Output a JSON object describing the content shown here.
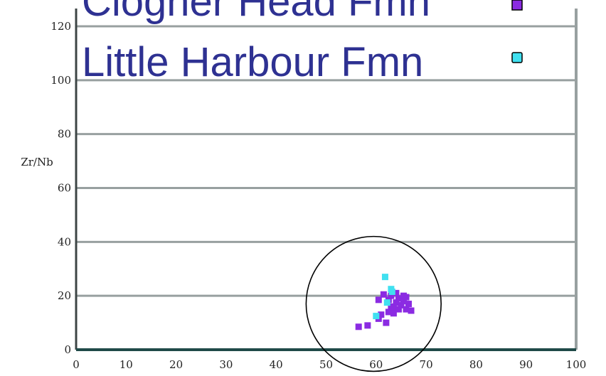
{
  "chart_data": {
    "type": "scatter",
    "ylabel": "Zr/Nb",
    "xlabel": "",
    "xlim": [
      0,
      100
    ],
    "ylim": [
      0,
      120
    ],
    "x_ticks": [
      "0",
      "10",
      "20",
      "30",
      "40",
      "50",
      "60",
      "70",
      "80",
      "90",
      "100"
    ],
    "y_ticks": [
      "0",
      "20",
      "40",
      "60",
      "80",
      "100",
      "120"
    ],
    "grid": "horizontal",
    "legend": {
      "placement": "top",
      "entries": [
        {
          "label": "Clogher Head Fmn",
          "marker": "square",
          "color": "#8b2be2"
        },
        {
          "label": "Little Harbour Fmn",
          "marker": "square",
          "color": "#40e0f0"
        }
      ]
    },
    "series": [
      {
        "name": "Clogher Head Fmn",
        "color": "#8b2be2",
        "points": [
          [
            56.5,
            8.5
          ],
          [
            58.3,
            9.0
          ],
          [
            60.5,
            11.5
          ],
          [
            61.0,
            13.0
          ],
          [
            62.0,
            10.0
          ],
          [
            62.5,
            14.0
          ],
          [
            63.0,
            16.0
          ],
          [
            63.5,
            15.5
          ],
          [
            64.0,
            17.5
          ],
          [
            64.5,
            19.0
          ],
          [
            65.0,
            16.5
          ],
          [
            65.5,
            18.0
          ],
          [
            66.0,
            15.0
          ],
          [
            66.5,
            17.0
          ],
          [
            67.0,
            14.5
          ],
          [
            63.0,
            20.0
          ],
          [
            64.0,
            21.0
          ],
          [
            62.5,
            18.5
          ],
          [
            65.5,
            20.0
          ],
          [
            60.5,
            18.5
          ],
          [
            61.5,
            20.5
          ],
          [
            63.5,
            13.5
          ],
          [
            66.0,
            19.5
          ],
          [
            64.5,
            15.0
          ]
        ]
      },
      {
        "name": "Little Harbour Fmn",
        "color": "#40e0f0",
        "points": [
          [
            61.8,
            27.0
          ],
          [
            63.2,
            21.5
          ],
          [
            62.2,
            17.5
          ],
          [
            60.0,
            12.5
          ],
          [
            63.0,
            22.5
          ]
        ]
      }
    ],
    "annotation": {
      "shape": "circle",
      "center": [
        59.5,
        17.0
      ],
      "radius_x": 13.5
    }
  }
}
